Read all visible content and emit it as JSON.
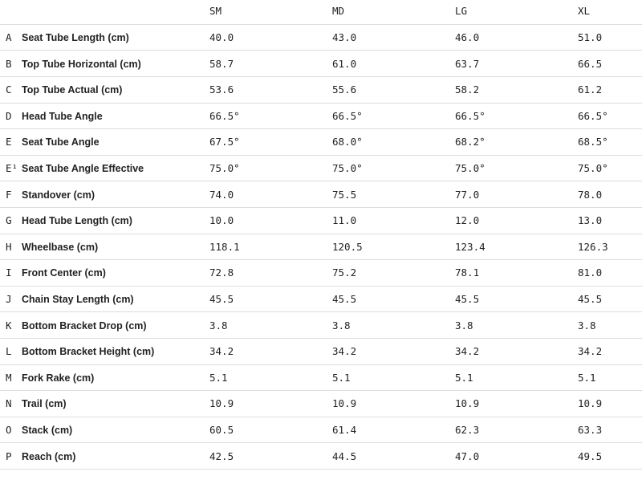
{
  "table": {
    "columns": [
      "SM",
      "MD",
      "LG",
      "XL"
    ],
    "rows": [
      {
        "letter": "A",
        "label": "Seat Tube Length (cm)",
        "values": [
          "40.0",
          "43.0",
          "46.0",
          "51.0"
        ]
      },
      {
        "letter": "B",
        "label": "Top Tube Horizontal (cm)",
        "values": [
          "58.7",
          "61.0",
          "63.7",
          "66.5"
        ]
      },
      {
        "letter": "C",
        "label": "Top Tube Actual (cm)",
        "values": [
          "53.6",
          "55.6",
          "58.2",
          "61.2"
        ]
      },
      {
        "letter": "D",
        "label": "Head Tube Angle",
        "values": [
          "66.5°",
          "66.5°",
          "66.5°",
          "66.5°"
        ]
      },
      {
        "letter": "E",
        "label": "Seat Tube Angle",
        "values": [
          "67.5°",
          "68.0°",
          "68.2°",
          "68.5°"
        ]
      },
      {
        "letter": "E¹",
        "label": "Seat Tube Angle Effective",
        "values": [
          "75.0°",
          "75.0°",
          "75.0°",
          "75.0°"
        ]
      },
      {
        "letter": "F",
        "label": "Standover (cm)",
        "values": [
          "74.0",
          "75.5",
          "77.0",
          "78.0"
        ]
      },
      {
        "letter": "G",
        "label": "Head Tube Length (cm)",
        "values": [
          "10.0",
          "11.0",
          "12.0",
          "13.0"
        ]
      },
      {
        "letter": "H",
        "label": "Wheelbase (cm)",
        "values": [
          "118.1",
          "120.5",
          "123.4",
          "126.3"
        ]
      },
      {
        "letter": "I",
        "label": "Front Center (cm)",
        "values": [
          "72.8",
          "75.2",
          "78.1",
          "81.0"
        ]
      },
      {
        "letter": "J",
        "label": "Chain Stay Length (cm)",
        "values": [
          "45.5",
          "45.5",
          "45.5",
          "45.5"
        ]
      },
      {
        "letter": "K",
        "label": "Bottom Bracket Drop (cm)",
        "values": [
          "3.8",
          "3.8",
          "3.8",
          "3.8"
        ]
      },
      {
        "letter": "L",
        "label": "Bottom Bracket Height (cm)",
        "values": [
          "34.2",
          "34.2",
          "34.2",
          "34.2"
        ]
      },
      {
        "letter": "M",
        "label": "Fork Rake (cm)",
        "values": [
          "5.1",
          "5.1",
          "5.1",
          "5.1"
        ]
      },
      {
        "letter": "N",
        "label": "Trail (cm)",
        "values": [
          "10.9",
          "10.9",
          "10.9",
          "10.9"
        ]
      },
      {
        "letter": "O",
        "label": "Stack (cm)",
        "values": [
          "60.5",
          "61.4",
          "62.3",
          "63.3"
        ]
      },
      {
        "letter": "P",
        "label": "Reach (cm)",
        "values": [
          "42.5",
          "44.5",
          "47.0",
          "49.5"
        ]
      }
    ]
  }
}
